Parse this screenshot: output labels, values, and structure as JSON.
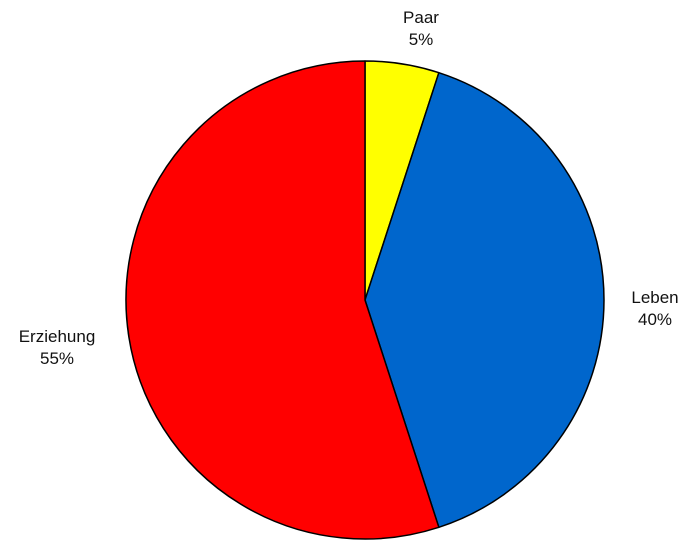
{
  "chart_data": {
    "type": "pie",
    "title": "",
    "start_angle_deg": 0,
    "direction": "clockwise",
    "slices": [
      {
        "label": "Paar",
        "value": 5,
        "percent_label": "5%",
        "color": "#ffff00"
      },
      {
        "label": "Leben",
        "value": 40,
        "percent_label": "40%",
        "color": "#0066cc"
      },
      {
        "label": "Erziehung",
        "value": 55,
        "percent_label": "55%",
        "color": "#ff0000"
      }
    ]
  }
}
